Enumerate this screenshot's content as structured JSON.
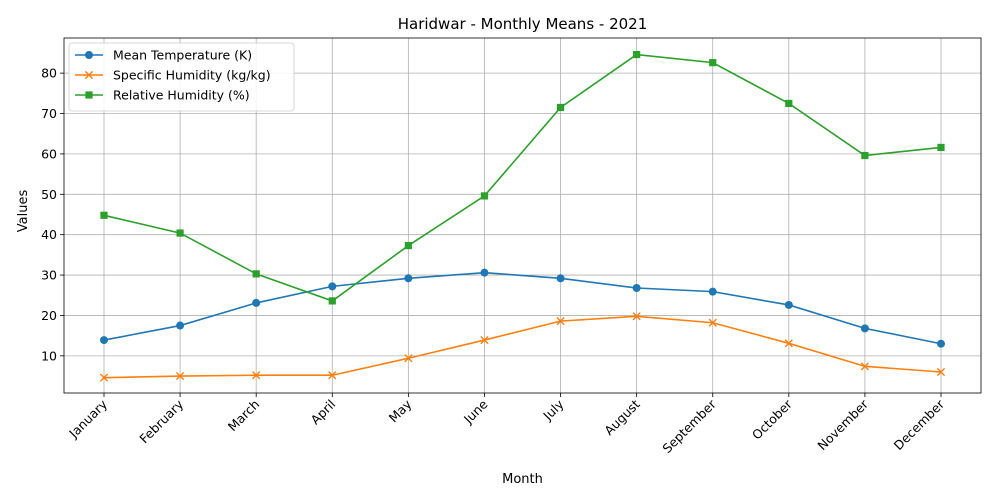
{
  "chart_data": {
    "type": "line",
    "title": "Haridwar - Monthly Means - 2021",
    "xlabel": "Month",
    "ylabel": "Values",
    "categories": [
      "January",
      "February",
      "March",
      "April",
      "May",
      "June",
      "July",
      "August",
      "September",
      "October",
      "November",
      "December"
    ],
    "ylim": [
      0.8,
      88.7
    ],
    "yticks": [
      10,
      20,
      30,
      40,
      50,
      60,
      70,
      80
    ],
    "grid": true,
    "legend_position": "upper-left",
    "series": [
      {
        "name": "Mean Temperature (K)",
        "color": "#1f77b4",
        "marker": "circle",
        "values": [
          13.9,
          17.5,
          23.1,
          27.2,
          29.2,
          30.6,
          29.2,
          26.8,
          25.9,
          22.6,
          16.8,
          13.0
        ]
      },
      {
        "name": "Specific Humidity (kg/kg)",
        "color": "#ff7f0e",
        "marker": "x",
        "values": [
          4.6,
          5.0,
          5.2,
          5.2,
          9.4,
          13.9,
          18.6,
          19.8,
          18.2,
          13.1,
          7.4,
          6.0
        ]
      },
      {
        "name": "Relative Humidity (%)",
        "color": "#2ca02c",
        "marker": "square",
        "values": [
          44.8,
          40.4,
          30.3,
          23.6,
          37.3,
          49.6,
          71.5,
          84.6,
          82.6,
          72.5,
          59.6,
          61.6
        ]
      }
    ]
  }
}
